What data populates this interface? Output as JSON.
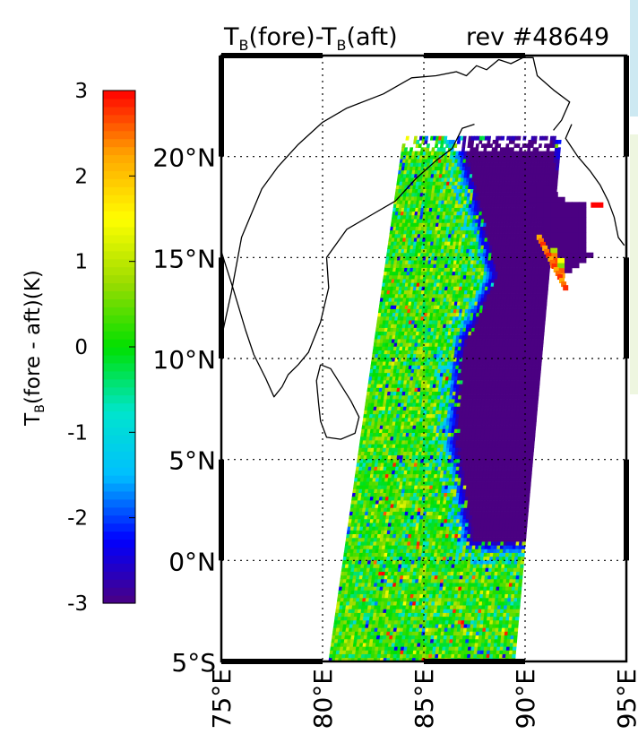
{
  "chart_data": {
    "type": "heatmap",
    "title": {
      "prefix": "T",
      "sub1": "B",
      "mid": "(fore)-T",
      "sub2": "B",
      "suffix": "(aft)",
      "rev": "rev #48649"
    },
    "colorbar": {
      "label_prefix": "T",
      "label_sub": "B",
      "label_suffix": "(fore - aft)(K)",
      "range": [
        -3,
        3
      ],
      "ticks": [
        {
          "value": 3,
          "label": "3"
        },
        {
          "value": 2,
          "label": "2"
        },
        {
          "value": 1,
          "label": "1"
        },
        {
          "value": 0,
          "label": "0"
        },
        {
          "value": -1,
          "label": "-1"
        },
        {
          "value": -2,
          "label": "-2"
        },
        {
          "value": -3,
          "label": "-3"
        }
      ],
      "colors": [
        "#4b0082",
        "#0000ff",
        "#00bfff",
        "#00e5cc",
        "#00e000",
        "#9bdc00",
        "#ffff00",
        "#ffa500",
        "#ff0000"
      ]
    },
    "lat_range": [
      -5,
      25
    ],
    "lon_range": [
      75,
      95
    ],
    "lat_ticks": [
      {
        "value": 20,
        "label": "20°N"
      },
      {
        "value": 15,
        "label": "15°N"
      },
      {
        "value": 10,
        "label": "10°N"
      },
      {
        "value": 5,
        "label": "5°N"
      },
      {
        "value": 0,
        "label": "0°N"
      },
      {
        "value": -5,
        "label": "5°S"
      }
    ],
    "lon_ticks": [
      {
        "value": 75,
        "label": "75°E"
      },
      {
        "value": 80,
        "label": "80°E"
      },
      {
        "value": 85,
        "label": "85°E"
      },
      {
        "value": 90,
        "label": "90°E"
      },
      {
        "value": 95,
        "label": "95°E"
      }
    ],
    "grid": true,
    "swath": {
      "corners": [
        [
          80.3,
          -5.0
        ],
        [
          89.5,
          -5.0
        ],
        [
          91.8,
          21.0
        ],
        [
          84.0,
          21.0
        ]
      ],
      "bins_x": 58,
      "bins_y": 140,
      "background_mean": 0.2,
      "background_noise": 0.9
    },
    "cold_core": {
      "region": [
        [
          87.5,
          1.0
        ],
        [
          90.5,
          1.0
        ],
        [
          91.5,
          8.0
        ],
        [
          92.0,
          16.0
        ],
        [
          91.3,
          20.8
        ],
        [
          87.0,
          20.8
        ],
        [
          88.7,
          14.0
        ],
        [
          87.0,
          10.5
        ],
        [
          86.7,
          6.0
        ]
      ],
      "value": -3,
      "edge_blue_width_deg": 0.6
    },
    "tongue": {
      "region": [
        [
          90.5,
          19.0
        ],
        [
          91.7,
          18.0
        ],
        [
          93.0,
          17.6
        ],
        [
          93.2,
          15.0
        ],
        [
          91.6,
          13.8
        ],
        [
          91.0,
          16.5
        ],
        [
          90.3,
          18.0
        ]
      ],
      "value": -3
    },
    "warm_streak": {
      "from": [
        90.7,
        16.0
      ],
      "to": [
        92.0,
        13.5
      ],
      "value": 2.2
    },
    "warm_dot": {
      "lon": 93.6,
      "lat": 17.6,
      "value": 3
    },
    "coastline": {
      "india_east": [
        [
          75.0,
          11.0
        ],
        [
          75.5,
          13.3
        ],
        [
          76.0,
          16.0
        ],
        [
          77.0,
          18.4
        ],
        [
          77.8,
          19.5
        ],
        [
          78.8,
          20.6
        ],
        [
          80.0,
          21.7
        ],
        [
          81.2,
          22.4
        ],
        [
          83.0,
          23.1
        ],
        [
          84.4,
          23.9
        ],
        [
          85.6,
          24.0
        ],
        [
          86.6,
          24.2
        ],
        [
          87.1,
          24.0
        ],
        [
          87.6,
          24.5
        ],
        [
          88.1,
          24.3
        ],
        [
          88.7,
          24.8
        ],
        [
          89.3,
          24.6
        ],
        [
          89.9,
          24.9
        ],
        [
          90.4,
          24.9
        ],
        [
          90.6,
          24.0
        ],
        [
          91.4,
          23.3
        ],
        [
          92.2,
          22.7
        ],
        [
          91.8,
          21.8
        ],
        [
          91.4,
          21.3
        ]
      ],
      "india_south": [
        [
          75.0,
          15.3
        ],
        [
          75.6,
          13.4
        ],
        [
          76.2,
          11.4
        ],
        [
          76.6,
          10.2
        ],
        [
          77.2,
          9.0
        ],
        [
          77.6,
          8.1
        ],
        [
          78.0,
          8.6
        ],
        [
          78.3,
          9.2
        ],
        [
          78.8,
          9.7
        ],
        [
          79.3,
          10.3
        ],
        [
          79.9,
          11.8
        ],
        [
          80.3,
          13.5
        ],
        [
          80.2,
          15.0
        ],
        [
          81.2,
          16.4
        ],
        [
          82.4,
          17.1
        ],
        [
          83.6,
          17.8
        ],
        [
          84.6,
          18.9
        ],
        [
          85.6,
          19.8
        ],
        [
          86.4,
          20.4
        ],
        [
          86.9,
          21.4
        ],
        [
          87.5,
          21.6
        ]
      ],
      "burma": [
        [
          92.3,
          21.6
        ],
        [
          92.0,
          20.9
        ],
        [
          92.6,
          20.0
        ],
        [
          93.2,
          19.3
        ],
        [
          93.7,
          18.6
        ],
        [
          94.1,
          17.8
        ],
        [
          94.4,
          17.0
        ],
        [
          94.6,
          16.0
        ],
        [
          94.9,
          15.6
        ]
      ],
      "sri_lanka": [
        [
          79.9,
          9.7
        ],
        [
          80.4,
          9.5
        ],
        [
          80.9,
          8.7
        ],
        [
          81.4,
          7.9
        ],
        [
          81.8,
          7.1
        ],
        [
          81.6,
          6.3
        ],
        [
          80.9,
          6.0
        ],
        [
          80.2,
          6.1
        ],
        [
          79.9,
          6.9
        ],
        [
          79.8,
          7.8
        ],
        [
          79.7,
          8.9
        ],
        [
          79.9,
          9.7
        ]
      ]
    }
  }
}
